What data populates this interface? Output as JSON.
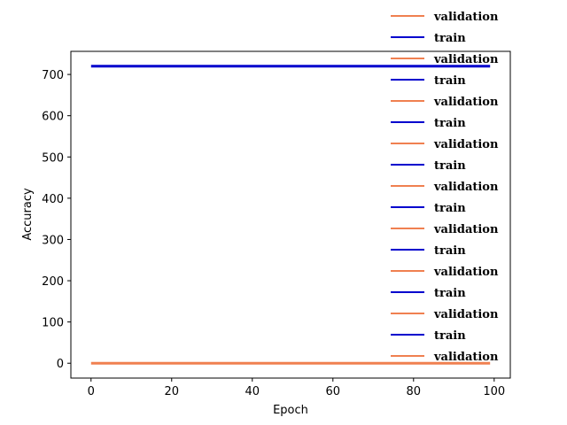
{
  "chart_data": {
    "type": "line",
    "title": "",
    "xlabel": "Epoch",
    "ylabel": "Accuracy",
    "xlim": [
      -5,
      104
    ],
    "ylim": [
      -36,
      756
    ],
    "xticks": [
      0,
      20,
      40,
      60,
      80,
      100
    ],
    "yticks": [
      0,
      100,
      200,
      300,
      400,
      500,
      600,
      700
    ],
    "grid": false,
    "legend_position": "top-right",
    "x": [
      0,
      99
    ],
    "series": [
      {
        "name": "train",
        "color": "#0000cd",
        "values": [
          720,
          720
        ]
      },
      {
        "name": "validation",
        "color": "#f08050",
        "values": [
          0,
          0
        ]
      }
    ],
    "legend": [
      {
        "label": "validation",
        "color": "#f08050"
      },
      {
        "label": "train",
        "color": "#0000cd"
      },
      {
        "label": "validation",
        "color": "#f08050"
      },
      {
        "label": "train",
        "color": "#0000cd"
      },
      {
        "label": "validation",
        "color": "#f08050"
      },
      {
        "label": "train",
        "color": "#0000cd"
      },
      {
        "label": "validation",
        "color": "#f08050"
      },
      {
        "label": "train",
        "color": "#0000cd"
      },
      {
        "label": "validation",
        "color": "#f08050"
      },
      {
        "label": "train",
        "color": "#0000cd"
      },
      {
        "label": "validation",
        "color": "#f08050"
      },
      {
        "label": "train",
        "color": "#0000cd"
      },
      {
        "label": "validation",
        "color": "#f08050"
      },
      {
        "label": "train",
        "color": "#0000cd"
      },
      {
        "label": "validation",
        "color": "#f08050"
      },
      {
        "label": "train",
        "color": "#0000cd"
      },
      {
        "label": "validation",
        "color": "#f08050"
      }
    ]
  }
}
